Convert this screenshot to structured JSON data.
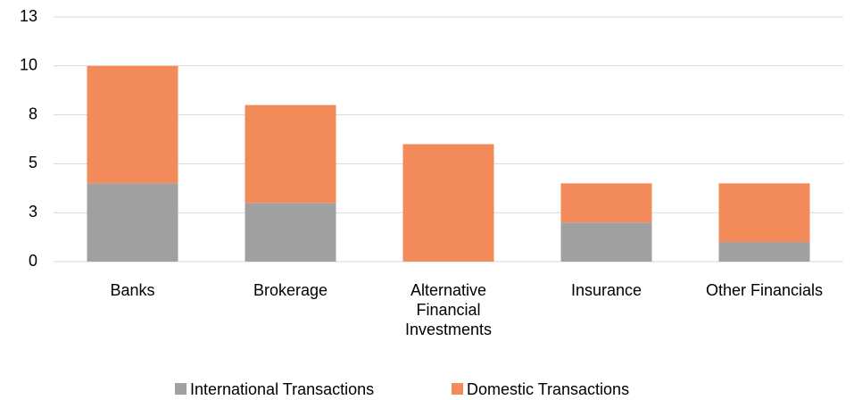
{
  "chart_data": {
    "type": "stacked_bar",
    "categories": [
      "Banks",
      "Brokerage",
      "Alternative Financial Investments",
      "Insurance",
      "Other Financials"
    ],
    "series": [
      {
        "name": "International Transactions",
        "color": "#a0a0a0",
        "values": [
          4,
          3,
          0,
          2,
          1
        ]
      },
      {
        "name": "Domestic Transactions",
        "color": "#f28a5a",
        "values": [
          6,
          5,
          6,
          2,
          3
        ]
      }
    ],
    "ylim": [
      0,
      12.5
    ],
    "yticks": [
      0,
      {
        "value": 2.5,
        "label": "3"
      },
      5,
      {
        "value": 7.5,
        "label": "8"
      },
      10,
      {
        "value": 12.5,
        "label": "13"
      }
    ],
    "grid": true,
    "legend": "bottom"
  }
}
